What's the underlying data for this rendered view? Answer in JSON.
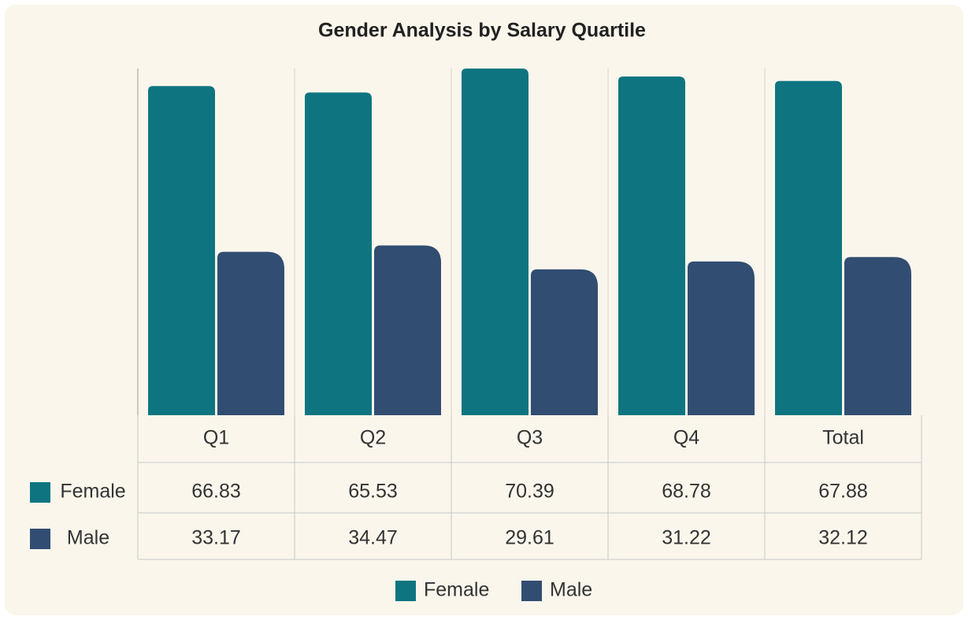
{
  "chart_data": {
    "type": "bar",
    "title": "Gender Analysis by Salary Quartile",
    "categories": [
      "Q1",
      "Q2",
      "Q3",
      "Q4",
      "Total"
    ],
    "series": [
      {
        "name": "Female",
        "color": "#0e7580",
        "values": [
          66.83,
          65.53,
          70.39,
          68.78,
          67.88
        ]
      },
      {
        "name": "Male",
        "color": "#324d72",
        "values": [
          33.17,
          34.47,
          29.61,
          31.22,
          32.12
        ]
      }
    ],
    "grid": false,
    "legend": "bottom"
  }
}
